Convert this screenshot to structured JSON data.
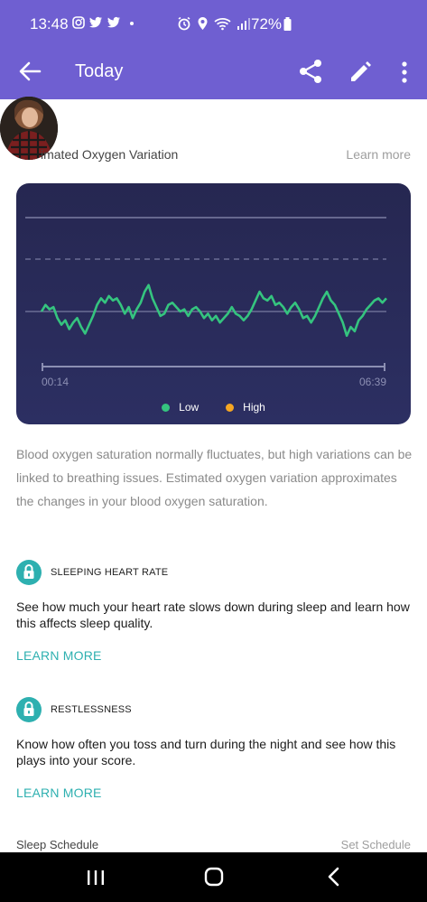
{
  "status_bar": {
    "time": "13:48",
    "battery": "72%",
    "icons": [
      "instagram-icon",
      "twitter-icon",
      "twitter-icon",
      "dot-icon",
      "alarm-icon",
      "location-icon",
      "wifi-icon",
      "signal-icon",
      "battery-icon"
    ]
  },
  "app_bar": {
    "title": "Today",
    "actions": [
      "back-arrow-icon",
      "share-icon",
      "edit-icon",
      "more-vert-icon"
    ]
  },
  "oxygen": {
    "title": "Estimated Oxygen Variation",
    "title_visible": "imated Oxygen Variation",
    "learn_more": "Learn more"
  },
  "chart_data": {
    "type": "line",
    "x_start_label": "00:14",
    "x_end_label": "06:39",
    "series": [
      {
        "name": "Low",
        "color": "#35c47f",
        "values": [
          0.0,
          0.3,
          0.1,
          0.2,
          -0.3,
          -0.6,
          -0.4,
          -0.8,
          -0.5,
          -0.3,
          -0.7,
          -1.0,
          -0.6,
          -0.2,
          0.3,
          0.6,
          0.4,
          0.7,
          0.5,
          0.6,
          0.3,
          -0.1,
          0.2,
          -0.3,
          0.1,
          0.4,
          0.9,
          1.2,
          0.6,
          0.2,
          -0.2,
          -0.1,
          0.3,
          0.4,
          0.2,
          0.0,
          0.1,
          -0.2,
          0.1,
          0.2,
          0.0,
          -0.3,
          -0.1,
          -0.4,
          -0.2,
          -0.5,
          -0.3,
          -0.1,
          0.2,
          -0.1,
          -0.2,
          -0.4,
          -0.2,
          0.1,
          0.5,
          0.9,
          0.6,
          0.5,
          0.7,
          0.3,
          0.4,
          0.2,
          -0.1,
          0.2,
          0.4,
          0.1,
          -0.3,
          -0.2,
          -0.5,
          -0.2,
          0.2,
          0.6,
          0.9,
          0.5,
          0.3,
          -0.1,
          -0.5,
          -1.1,
          -0.7,
          -0.9,
          -0.4,
          -0.2,
          0.1,
          0.3,
          0.5,
          0.6,
          0.4,
          0.6
        ],
        "y_min": -1.2,
        "y_max": 1.6
      }
    ],
    "legend": [
      {
        "label": "Low",
        "color": "#35c47f"
      },
      {
        "label": "High",
        "color": "#f5a623"
      }
    ]
  },
  "description": "Blood oxygen saturation normally fluctuates, but high variations can be linked to breathing issues. Estimated oxygen variation approximates the changes in your blood oxygen saturation.",
  "features": [
    {
      "title": "SLEEPING HEART RATE",
      "description": "See how much your heart rate slows down during sleep and learn how this affects sleep quality.",
      "link": "LEARN MORE"
    },
    {
      "title": "RESTLESSNESS",
      "description": "Know how often you toss and turn during the night and see how this plays into your score.",
      "link": "LEARN MORE"
    }
  ],
  "sleep_schedule": {
    "title": "Sleep Schedule",
    "action": "Set Schedule"
  },
  "colors": {
    "brand": "#6f5fd1",
    "accent": "#2eb0b0",
    "chart_bg": "#2a2b5b"
  }
}
